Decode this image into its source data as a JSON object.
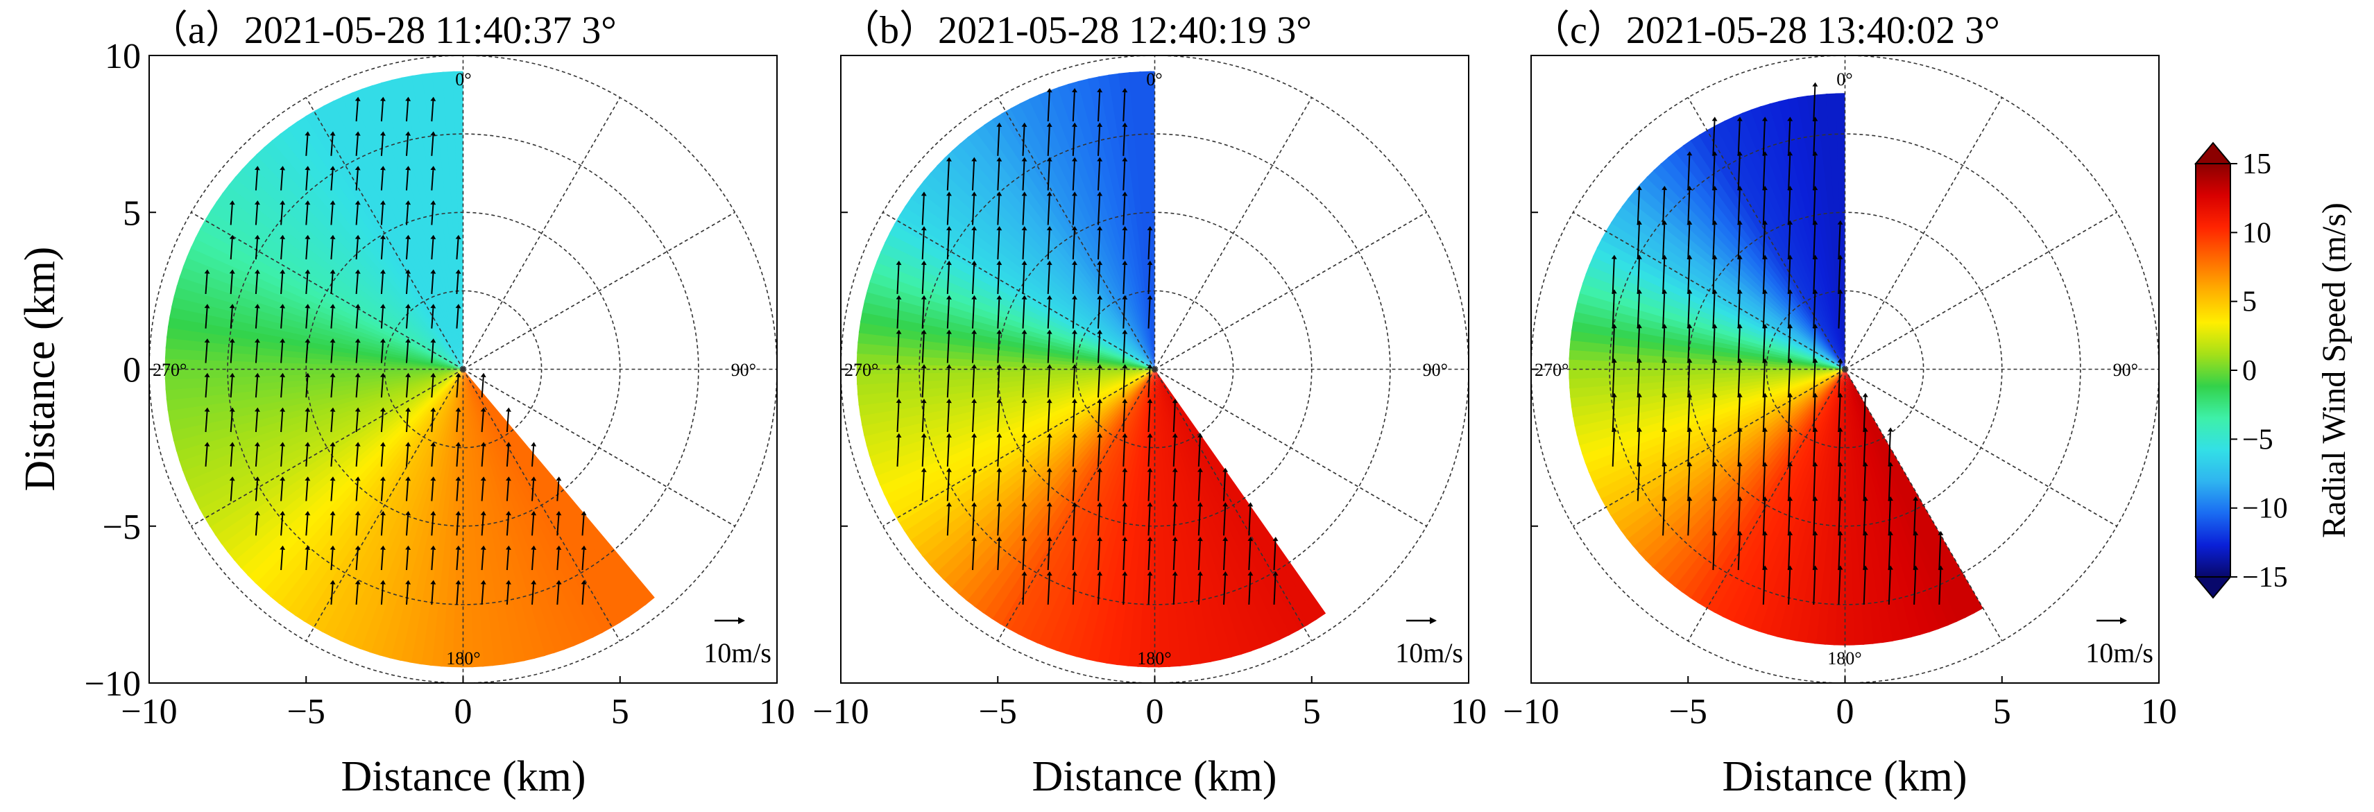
{
  "chart_data": {
    "type": "polar-ppi",
    "shared": {
      "xlabel": "Distance (km)",
      "ylabel": "Distance (km)",
      "xlim": [
        -10,
        10
      ],
      "ylim": [
        -10,
        10
      ],
      "ticks": [
        -10,
        -5,
        0,
        5,
        10
      ],
      "tick_labels": [
        "−10",
        "−5",
        "0",
        "5",
        "10"
      ],
      "range_rings_km": [
        2.5,
        5,
        7.5,
        10
      ],
      "spoke_step_deg": 30,
      "compass_labels": {
        "north": "0°",
        "east": "90°",
        "south": "180°",
        "west": "270°"
      },
      "reference_arrow_label": "10m/s",
      "reference_arrow_speed_ms": 10,
      "colorbar": {
        "label": "Radial Wind Speed (m/s)",
        "range": [
          -15,
          15
        ],
        "ticks": [
          15,
          10,
          5,
          0,
          -5,
          -10,
          -15
        ],
        "tick_labels": [
          "15",
          "10",
          "5",
          "0",
          "−5",
          "−10",
          "−15"
        ],
        "colors": [
          "#08086b",
          "#0a20d8",
          "#1a6cf2",
          "#2fb4f0",
          "#33e0e6",
          "#3ef0a8",
          "#33d24a",
          "#a5e018",
          "#ffee00",
          "#ffb000",
          "#ff6a00",
          "#ff2400",
          "#d80000",
          "#8b0000"
        ]
      }
    },
    "panels": [
      {
        "label": "(a)",
        "title": "（a）2021-05-28 11:40:37 3°",
        "elevation_deg": 3,
        "scan_sector_deg": [
          140,
          360
        ],
        "max_range_km": 9.5,
        "radial_velocity_ms": [
          {
            "azimuth_deg": 150,
            "value": 8
          },
          {
            "azimuth_deg": 180,
            "value": 7
          },
          {
            "azimuth_deg": 210,
            "value": 5
          },
          {
            "azimuth_deg": 240,
            "value": 2
          },
          {
            "azimuth_deg": 270,
            "value": 0
          },
          {
            "azimuth_deg": 300,
            "value": -4
          },
          {
            "azimuth_deg": 330,
            "value": -6
          },
          {
            "azimuth_deg": 355,
            "value": -6
          }
        ],
        "wind_vector_ms": {
          "u": 0.5,
          "v": 7
        }
      },
      {
        "label": "(b)",
        "title": "（b）2021-05-28 12:40:19 3°",
        "elevation_deg": 3,
        "scan_sector_deg": [
          145,
          360
        ],
        "max_range_km": 9.5,
        "radial_velocity_ms": [
          {
            "azimuth_deg": 150,
            "value": 12
          },
          {
            "azimuth_deg": 180,
            "value": 11
          },
          {
            "azimuth_deg": 210,
            "value": 9
          },
          {
            "azimuth_deg": 240,
            "value": 4
          },
          {
            "azimuth_deg": 270,
            "value": 1
          },
          {
            "azimuth_deg": 300,
            "value": -6
          },
          {
            "azimuth_deg": 330,
            "value": -9
          },
          {
            "azimuth_deg": 355,
            "value": -11
          }
        ],
        "wind_vector_ms": {
          "u": 0.5,
          "v": 10
        }
      },
      {
        "label": "(c)",
        "title": "（c）2021-05-28 13:40:02 3°",
        "elevation_deg": 3,
        "scan_sector_deg": [
          150,
          360
        ],
        "max_range_km": 8.8,
        "radial_velocity_ms": [
          {
            "azimuth_deg": 155,
            "value": 13
          },
          {
            "azimuth_deg": 180,
            "value": 12
          },
          {
            "azimuth_deg": 210,
            "value": 10
          },
          {
            "azimuth_deg": 240,
            "value": 5
          },
          {
            "azimuth_deg": 270,
            "value": 1
          },
          {
            "azimuth_deg": 300,
            "value": -7
          },
          {
            "azimuth_deg": 330,
            "value": -12
          },
          {
            "azimuth_deg": 355,
            "value": -13
          }
        ],
        "wind_vector_ms": {
          "u": 0.5,
          "v": 12
        }
      }
    ]
  }
}
